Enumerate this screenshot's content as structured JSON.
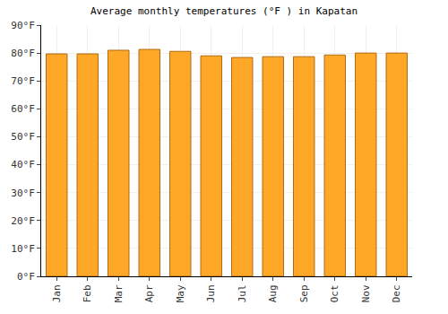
{
  "chart_data": {
    "type": "bar",
    "title": "Average monthly temperatures (°F ) in Kapatan",
    "categories": [
      "Jan",
      "Feb",
      "Mar",
      "Apr",
      "May",
      "Jun",
      "Jul",
      "Aug",
      "Sep",
      "Oct",
      "Nov",
      "Dec"
    ],
    "values": [
      79.7,
      79.7,
      81.0,
      81.3,
      80.6,
      79.0,
      78.4,
      78.7,
      78.7,
      79.3,
      80.0,
      80.0
    ],
    "color": "#ffa726",
    "ylim": [
      0,
      90
    ],
    "yticks": [
      {
        "value": 0,
        "label": "0°F"
      },
      {
        "value": 10,
        "label": "10°F"
      },
      {
        "value": 20,
        "label": "20°F"
      },
      {
        "value": 30,
        "label": "30°F"
      },
      {
        "value": 40,
        "label": "40°F"
      },
      {
        "value": 50,
        "label": "50°F"
      },
      {
        "value": 60,
        "label": "60°F"
      },
      {
        "value": 70,
        "label": "70°F"
      },
      {
        "value": 80,
        "label": "80°F"
      },
      {
        "value": 90,
        "label": "90°F"
      }
    ],
    "grid": true
  }
}
